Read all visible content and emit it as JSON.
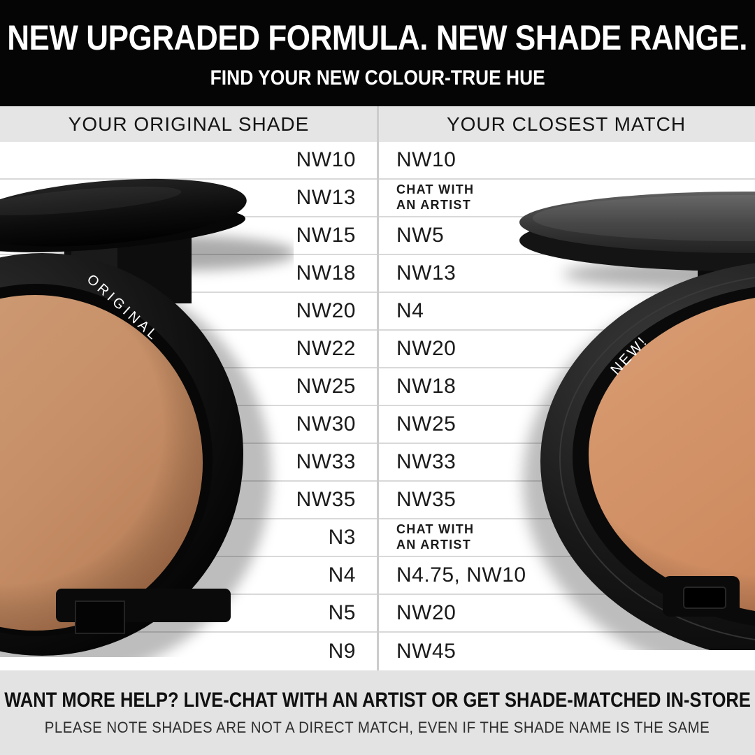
{
  "header": {
    "title": "NEW UPGRADED FORMULA. NEW SHADE RANGE.",
    "subtitle": "FIND YOUR NEW COLOUR-TRUE HUE"
  },
  "table": {
    "col1_header": "YOUR ORIGINAL SHADE",
    "col2_header": "YOUR CLOSEST MATCH",
    "rows": [
      {
        "original": "NW10",
        "match": "NW10",
        "small": false
      },
      {
        "original": "NW13",
        "match": "CHAT WITH\nAN ARTIST",
        "small": true
      },
      {
        "original": "NW15",
        "match": "NW5",
        "small": false
      },
      {
        "original": "NW18",
        "match": "NW13",
        "small": false
      },
      {
        "original": "NW20",
        "match": "N4",
        "small": false
      },
      {
        "original": "NW22",
        "match": "NW20",
        "small": false
      },
      {
        "original": "NW25",
        "match": "NW18",
        "small": false
      },
      {
        "original": "NW30",
        "match": "NW25",
        "small": false
      },
      {
        "original": "NW33",
        "match": "NW33",
        "small": false
      },
      {
        "original": "NW35",
        "match": "NW35",
        "small": false
      },
      {
        "original": "N3",
        "match": "CHAT WITH\nAN ARTIST",
        "small": true
      },
      {
        "original": "N4",
        "match": "N4.75, NW10",
        "small": false
      },
      {
        "original": "N5",
        "match": "NW20",
        "small": false
      },
      {
        "original": "N9",
        "match": "NW45",
        "small": false
      }
    ]
  },
  "products": {
    "left_label": "ORIGINAL",
    "right_label": "NEW!"
  },
  "footer": {
    "line1": "WANT MORE HELP? LIVE-CHAT WITH AN ARTIST OR GET SHADE-MATCHED IN-STORE",
    "line2": "PLEASE NOTE SHADES ARE NOT A DIRECT MATCH, EVEN IF THE SHADE NAME IS THE SAME"
  },
  "colors": {
    "banner_bg": "#050505",
    "banner_text": "#ffffff",
    "table_header_bg": "#e5e5e5",
    "footer_bg": "#e3e3e3",
    "row_line": "#d9d9d9",
    "column_divider": "#cccccc",
    "body_text": "#1a1a1a",
    "original_pan": "#c9946f",
    "new_pan": "#d29068"
  },
  "chart_data": {
    "type": "table",
    "title": "NEW UPGRADED FORMULA. NEW SHADE RANGE.",
    "subtitle": "FIND YOUR NEW COLOUR-TRUE HUE",
    "columns": [
      "YOUR ORIGINAL SHADE",
      "YOUR CLOSEST MATCH"
    ],
    "rows": [
      [
        "NW10",
        "NW10"
      ],
      [
        "NW13",
        "CHAT WITH AN ARTIST"
      ],
      [
        "NW15",
        "NW5"
      ],
      [
        "NW18",
        "NW13"
      ],
      [
        "NW20",
        "N4"
      ],
      [
        "NW22",
        "NW20"
      ],
      [
        "NW25",
        "NW18"
      ],
      [
        "NW30",
        "NW25"
      ],
      [
        "NW33",
        "NW33"
      ],
      [
        "NW35",
        "NW35"
      ],
      [
        "N3",
        "CHAT WITH AN ARTIST"
      ],
      [
        "N4",
        "N4.75, NW10"
      ],
      [
        "N5",
        "NW20"
      ],
      [
        "N9",
        "NW45"
      ]
    ],
    "notes": [
      "WANT MORE HELP? LIVE-CHAT WITH AN ARTIST OR GET SHADE-MATCHED IN-STORE",
      "PLEASE NOTE SHADES ARE NOT A DIRECT MATCH, EVEN IF THE SHADE NAME IS THE SAME"
    ]
  }
}
